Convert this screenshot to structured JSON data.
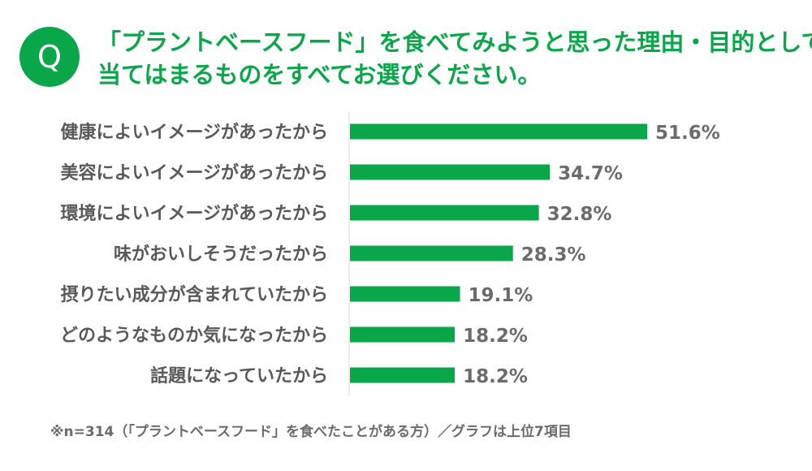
{
  "question": {
    "badge": "Q",
    "line1": "「プラントベースフード」を食べてみようと思った理由・目的として、",
    "line2": "当てはまるものをすべてお選びください。"
  },
  "colors": {
    "accent": "#0aa64a",
    "bar": "#0aa64a",
    "label": "#595959",
    "value": "#6b6b6b"
  },
  "chart_data": {
    "type": "bar",
    "orientation": "horizontal",
    "unit": "%",
    "categories": [
      "健康によいイメージがあったから",
      "美容によいイメージがあったから",
      "環境によいイメージがあったから",
      "味がおいしそうだったから",
      "摂りたい成分が含まれていたから",
      "どのようなものか気になったから",
      "話題になっていたから"
    ],
    "values": [
      51.6,
      34.7,
      32.8,
      28.3,
      19.1,
      18.2,
      18.2
    ],
    "value_labels": [
      "51.6%",
      "34.7%",
      "32.8%",
      "28.3%",
      "19.1%",
      "18.2%",
      "18.2%"
    ]
  },
  "footnote": "※n=314（「プラントベースフード」を食べたことがある方）／グラフは上位7項目"
}
